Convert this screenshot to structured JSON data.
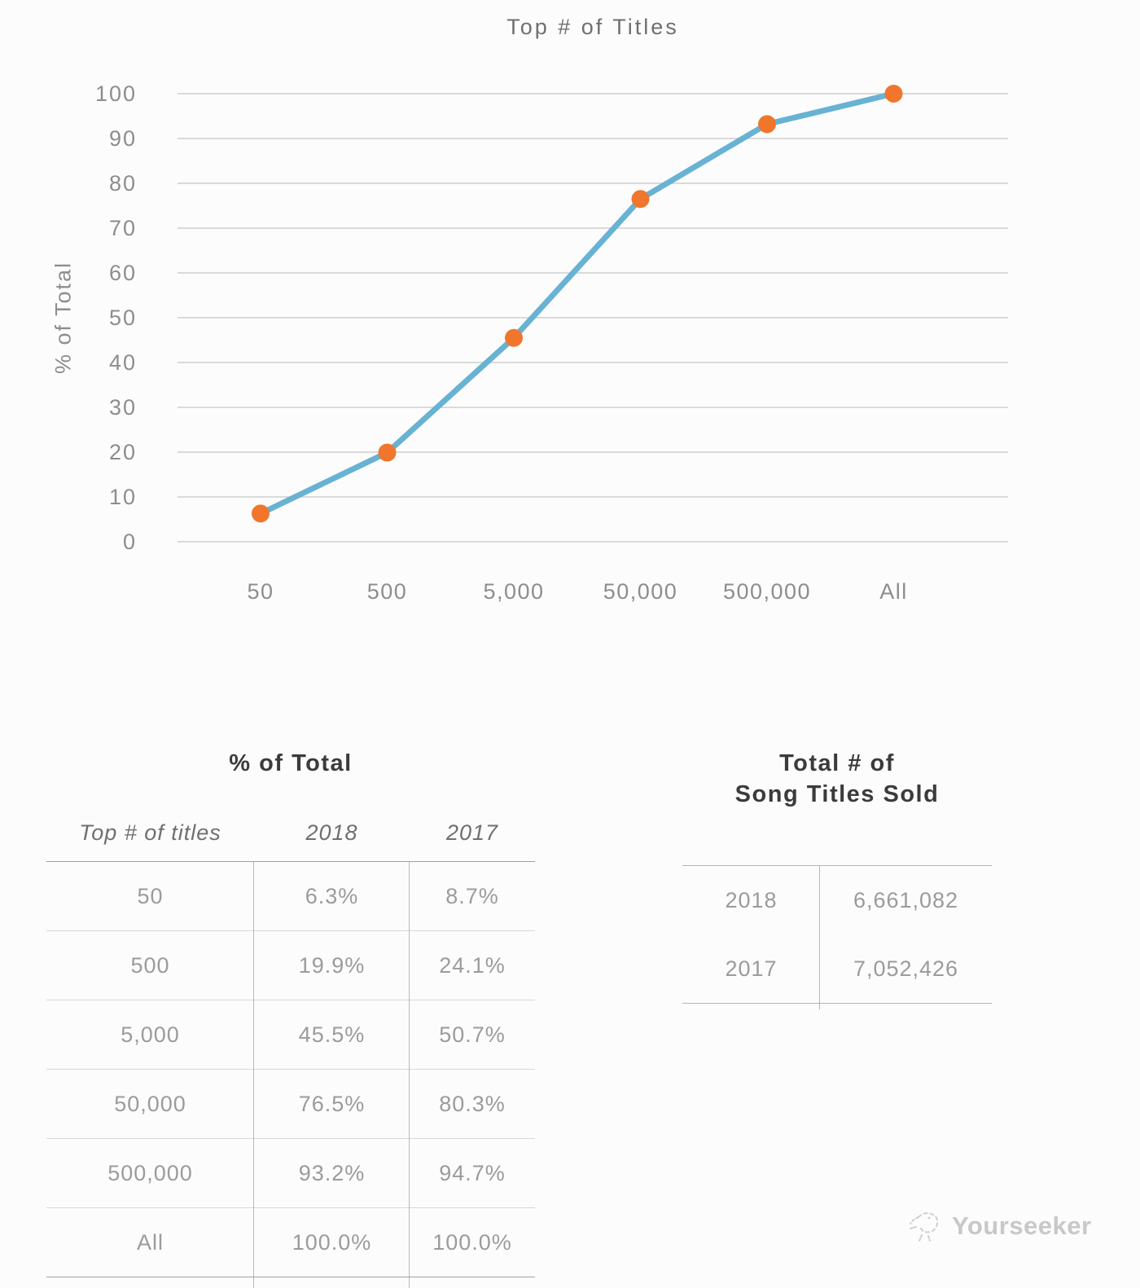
{
  "chart_data": {
    "type": "line",
    "title": "Top # of Titles",
    "xlabel": "Top # of titles",
    "ylabel": "% of Total",
    "categories": [
      "50",
      "500",
      "5,000",
      "50,000",
      "500,000",
      "All"
    ],
    "series": [
      {
        "name": "2018",
        "values": [
          6.3,
          19.9,
          45.5,
          76.5,
          93.2,
          100.0
        ]
      }
    ],
    "ylim": [
      0,
      100
    ],
    "ytick_step": 10,
    "grid": true,
    "legend": "none"
  },
  "tables": {
    "pct_of_total": {
      "title": "% of Total",
      "columns": [
        "Top # of titles",
        "2018",
        "2017"
      ],
      "rows": [
        [
          "50",
          "6.3%",
          "8.7%"
        ],
        [
          "500",
          "19.9%",
          "24.1%"
        ],
        [
          "5,000",
          "45.5%",
          "50.7%"
        ],
        [
          "50,000",
          "76.5%",
          "80.3%"
        ],
        [
          "500,000",
          "93.2%",
          "94.7%"
        ],
        [
          "All",
          "100.0%",
          "100.0%"
        ]
      ]
    },
    "titles_sold": {
      "title_line1": "Total # of",
      "title_line2": "Song Titles Sold",
      "rows": [
        [
          "2018",
          "6,661,082"
        ],
        [
          "2017",
          "7,052,426"
        ]
      ]
    }
  },
  "watermark": {
    "label": "Yourseeker",
    "icon": "bird-doodle-icon"
  },
  "colors": {
    "line": "#68b2d3",
    "marker": "#f0762d",
    "grid": "#cfcfcf",
    "tick_text": "#8d8d8d",
    "chart_title_text": "#6f6f6f",
    "table_text": "#9b9b9b",
    "heading_text": "#3b3b3b",
    "watermark_text": "#c8c8c8"
  }
}
